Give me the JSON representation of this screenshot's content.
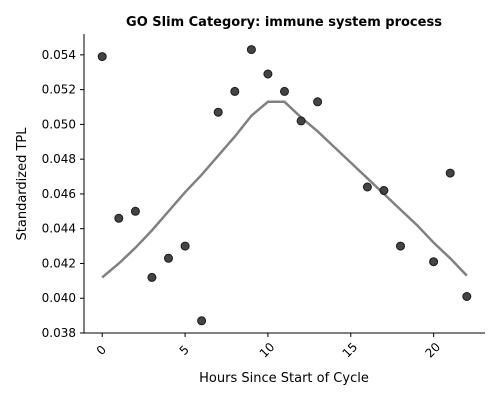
{
  "chart_data": {
    "type": "scatter",
    "title": "GO Slim Category: immune system process",
    "xlabel": "Hours Since Start of Cycle",
    "ylabel": "Standardized TPL",
    "xlim": [
      -1.1,
      23.1
    ],
    "ylim": [
      0.038,
      0.0552
    ],
    "xticks": [
      0,
      5,
      10,
      15,
      20
    ],
    "yticks": [
      0.038,
      0.04,
      0.042,
      0.044,
      0.046,
      0.048,
      0.05,
      0.052,
      0.054
    ],
    "xtick_labels": [
      "0",
      "5",
      "10",
      "15",
      "20"
    ],
    "ytick_labels": [
      "0.038",
      "0.040",
      "0.042",
      "0.044",
      "0.046",
      "0.048",
      "0.050",
      "0.052",
      "0.054"
    ],
    "grid": false,
    "points": [
      {
        "x": 0,
        "y": 0.0539
      },
      {
        "x": 1,
        "y": 0.0446
      },
      {
        "x": 2,
        "y": 0.045
      },
      {
        "x": 3,
        "y": 0.0412
      },
      {
        "x": 4,
        "y": 0.0423
      },
      {
        "x": 5,
        "y": 0.043
      },
      {
        "x": 6,
        "y": 0.0387
      },
      {
        "x": 7,
        "y": 0.0507
      },
      {
        "x": 8,
        "y": 0.0519
      },
      {
        "x": 9,
        "y": 0.0543
      },
      {
        "x": 10,
        "y": 0.0529
      },
      {
        "x": 11,
        "y": 0.0519
      },
      {
        "x": 12,
        "y": 0.0502
      },
      {
        "x": 13,
        "y": 0.0513
      },
      {
        "x": 16,
        "y": 0.0464
      },
      {
        "x": 17,
        "y": 0.0462
      },
      {
        "x": 18,
        "y": 0.043
      },
      {
        "x": 20,
        "y": 0.0421
      },
      {
        "x": 21,
        "y": 0.0472
      },
      {
        "x": 22,
        "y": 0.0401
      }
    ],
    "trend_line": {
      "x": [
        0,
        1,
        2,
        3,
        4,
        5,
        6,
        7,
        8,
        9,
        10,
        11,
        12,
        13,
        14,
        15,
        16,
        17,
        18,
        19,
        20,
        21,
        22
      ],
      "y": [
        0.0412,
        0.042,
        0.0429,
        0.0439,
        0.045,
        0.0461,
        0.0471,
        0.0482,
        0.0493,
        0.0505,
        0.0513,
        0.0513,
        0.0504,
        0.0496,
        0.0487,
        0.0478,
        0.0469,
        0.046,
        0.0451,
        0.0442,
        0.0432,
        0.0423,
        0.0413
      ]
    },
    "colors": {
      "points": "#3a3a3a",
      "trend": "#808080"
    }
  }
}
